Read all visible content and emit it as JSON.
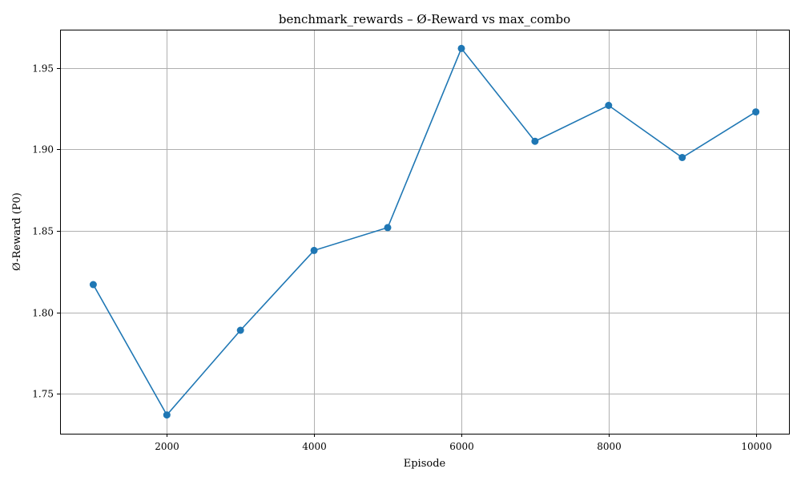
{
  "chart_data": {
    "type": "line",
    "title": "benchmark_rewards – Ø-Reward vs max_combo",
    "xlabel": "Episode",
    "ylabel": "Ø-Reward (P0)",
    "x": [
      1000,
      2000,
      3000,
      4000,
      5000,
      6000,
      7000,
      8000,
      9000,
      10000
    ],
    "series": [
      {
        "values": [
          1.817,
          1.737,
          1.789,
          1.838,
          1.852,
          1.962,
          1.905,
          1.927,
          1.895,
          1.923
        ],
        "color": "#1f77b4",
        "marker": "circle"
      }
    ],
    "xlim": [
      550,
      10450
    ],
    "ylim": [
      1.7255,
      1.9735
    ],
    "xticks": [
      2000,
      4000,
      6000,
      8000,
      10000
    ],
    "xtick_labels": [
      "2000",
      "4000",
      "6000",
      "8000",
      "10000"
    ],
    "yticks": [
      1.75,
      1.8,
      1.85,
      1.9,
      1.95
    ],
    "ytick_labels": [
      "1.75",
      "1.80",
      "1.85",
      "1.90",
      "1.95"
    ],
    "grid": true
  }
}
